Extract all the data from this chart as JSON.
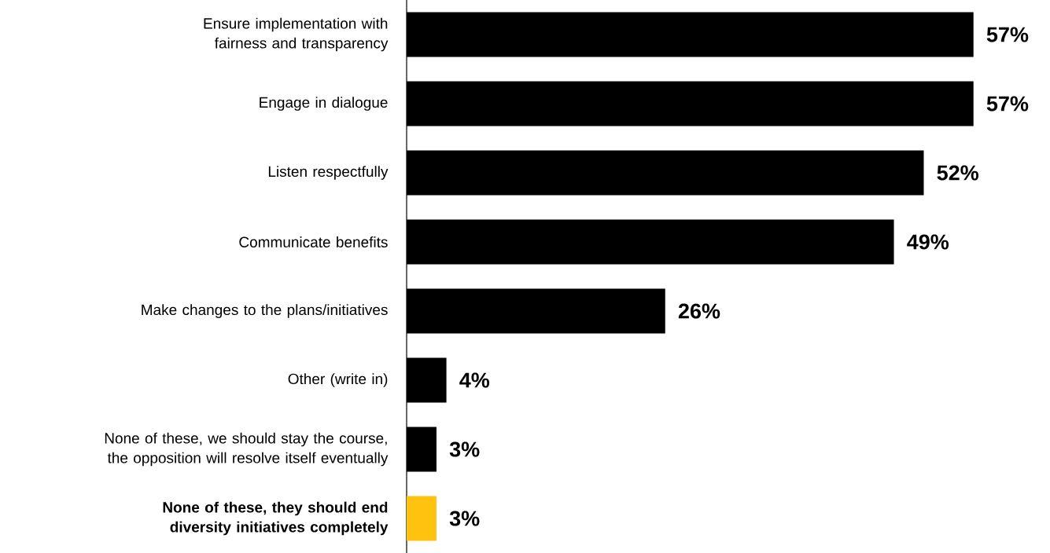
{
  "chart_data": {
    "type": "bar",
    "orientation": "horizontal",
    "categories": [
      "Ensure implementation with fairness and transparency",
      "Engage in dialogue",
      "Listen respectfully",
      "Communicate benefits",
      "Make changes to the plans/initiatives",
      "Other (write in)",
      "None of these, we should stay the course, the opposition will resolve itself eventually",
      "**None of these, they should end diversity initiatives completely**"
    ],
    "values": [
      57,
      57,
      52,
      49,
      26,
      4,
      3,
      3
    ],
    "colors": [
      "#000000",
      "#000000",
      "#000000",
      "#000000",
      "#000000",
      "#000000",
      "#000000",
      "#ffc20e"
    ],
    "value_labels": [
      "57%",
      "57%",
      "52%",
      "49%",
      "26%",
      "4%",
      "3%",
      "3%"
    ]
  }
}
